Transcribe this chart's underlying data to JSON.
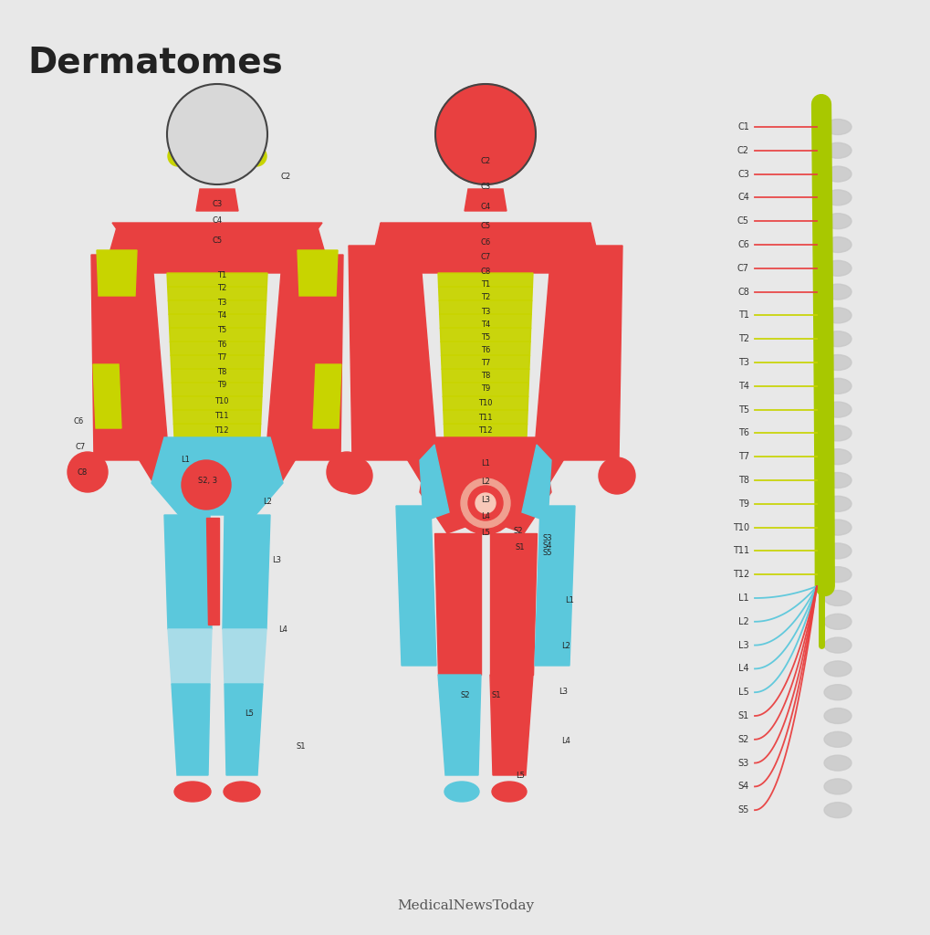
{
  "background_color": "#e8e8e8",
  "title": "Dermatomes",
  "title_fontsize": 28,
  "title_fontweight": "bold",
  "title_color": "#222222",
  "watermark": "MedicalNewsToday",
  "colors": {
    "red": "#e84040",
    "red_light": "#f08080",
    "green": "#c8d400",
    "blue": "#5bc8dc",
    "blue_light": "#a8dce8",
    "skin": "#f0a090",
    "skin_light": "#f8c8b8",
    "white_gray": "#d8d8d8",
    "spine_green": "#a8c800",
    "dark": "#333333"
  },
  "nerve_labels": [
    "C1",
    "C2",
    "C3",
    "C4",
    "C5",
    "C6",
    "C7",
    "C8",
    "T1",
    "T2",
    "T3",
    "T4",
    "T5",
    "T6",
    "T7",
    "T8",
    "T9",
    "T10",
    "T11",
    "T12",
    "L1",
    "L2",
    "L3",
    "L4",
    "L5",
    "S1",
    "S2",
    "S3",
    "S4",
    "S5"
  ],
  "nerve_colors": {
    "C1": "#e84040",
    "C2": "#e84040",
    "C3": "#e84040",
    "C4": "#e84040",
    "C5": "#e84040",
    "C6": "#e84040",
    "C7": "#e84040",
    "C8": "#e84040",
    "T1": "#c8d400",
    "T2": "#c8d400",
    "T3": "#c8d400",
    "T4": "#c8d400",
    "T5": "#c8d400",
    "T6": "#c8d400",
    "T7": "#c8d400",
    "T8": "#c8d400",
    "T9": "#c8d400",
    "T10": "#c8d400",
    "T11": "#c8d400",
    "T12": "#c8d400",
    "L1": "#5bc8dc",
    "L2": "#5bc8dc",
    "L3": "#5bc8dc",
    "L4": "#5bc8dc",
    "L5": "#5bc8dc",
    "S1": "#e84040",
    "S2": "#e84040",
    "S3": "#e84040",
    "S4": "#e84040",
    "S5": "#e84040"
  }
}
